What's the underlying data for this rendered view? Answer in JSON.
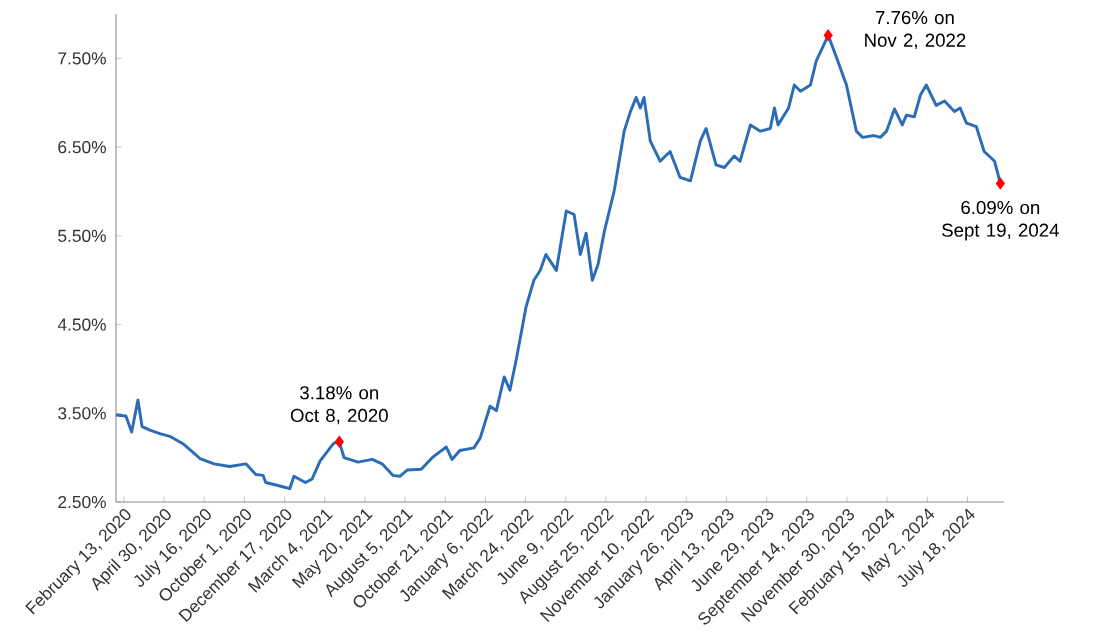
{
  "chart_data": {
    "type": "line",
    "xlim": [
      "2020-01-29",
      "2024-09-26"
    ],
    "ylim": [
      2.5,
      8.0
    ],
    "yticks": [
      {
        "value": 2.5,
        "label": "2.50%"
      },
      {
        "value": 3.5,
        "label": "3.50%"
      },
      {
        "value": 4.5,
        "label": "4.50%"
      },
      {
        "value": 5.5,
        "label": "5.50%"
      },
      {
        "value": 6.5,
        "label": "6.50%"
      },
      {
        "value": 7.5,
        "label": "7.50%"
      }
    ],
    "xticks": [
      {
        "value": "2020-02-13",
        "label": "February 13, 2020"
      },
      {
        "value": "2020-04-30",
        "label": "April 30, 2020"
      },
      {
        "value": "2020-07-16",
        "label": "July 16, 2020"
      },
      {
        "value": "2020-10-01",
        "label": "October 1, 2020"
      },
      {
        "value": "2020-12-17",
        "label": "December 17, 2020"
      },
      {
        "value": "2021-03-04",
        "label": "March 4, 2021"
      },
      {
        "value": "2021-05-20",
        "label": "May 20, 2021"
      },
      {
        "value": "2021-08-05",
        "label": "August 5, 2021"
      },
      {
        "value": "2021-10-21",
        "label": "October 21, 2021"
      },
      {
        "value": "2022-01-06",
        "label": "January 6, 2022"
      },
      {
        "value": "2022-03-24",
        "label": "March 24, 2022"
      },
      {
        "value": "2022-06-09",
        "label": "June 9, 2022"
      },
      {
        "value": "2022-08-25",
        "label": "August 25, 2022"
      },
      {
        "value": "2022-11-10",
        "label": "November 10, 2022"
      },
      {
        "value": "2023-01-26",
        "label": "January 26, 2023"
      },
      {
        "value": "2023-04-13",
        "label": "April 13, 2023"
      },
      {
        "value": "2023-06-29",
        "label": "June 29, 2023"
      },
      {
        "value": "2023-09-14",
        "label": "September 14, 2023"
      },
      {
        "value": "2023-11-30",
        "label": "November 30, 2023"
      },
      {
        "value": "2024-02-15",
        "label": "February 15, 2024"
      },
      {
        "value": "2024-05-02",
        "label": "May 2, 2024"
      },
      {
        "value": "2024-07-18",
        "label": "July 18, 2024"
      }
    ],
    "series": [
      {
        "color": "#2b6cb8",
        "marker": "none",
        "x": [
          "2020-01-29",
          "2020-02-17",
          "2020-02-28",
          "2020-03-11",
          "2020-03-19",
          "2020-04-03",
          "2020-04-22",
          "2020-05-11",
          "2020-06-07",
          "2020-07-08",
          "2020-08-04",
          "2020-09-03",
          "2020-10-04",
          "2020-10-23",
          "2020-11-06",
          "2020-11-11",
          "2020-12-08",
          "2020-12-27",
          "2021-01-04",
          "2021-01-26",
          "2021-02-08",
          "2021-02-23",
          "2021-03-21",
          "2021-04-01",
          "2021-04-10",
          "2021-05-07",
          "2021-06-03",
          "2021-06-22",
          "2021-07-13",
          "2021-07-26",
          "2021-08-09",
          "2021-09-05",
          "2021-09-26",
          "2021-10-23",
          "2021-11-03",
          "2021-11-18",
          "2021-12-15",
          "2021-12-27",
          "2022-01-15",
          "2022-01-27",
          "2022-02-11",
          "2022-02-22",
          "2022-03-06",
          "2022-03-25",
          "2022-04-09",
          "2022-04-21",
          "2022-05-02",
          "2022-05-22",
          "2022-06-10",
          "2022-06-25",
          "2022-07-07",
          "2022-07-18",
          "2022-07-30",
          "2022-08-10",
          "2022-08-22",
          "2022-09-10",
          "2022-09-29",
          "2022-10-11",
          "2022-10-22",
          "2022-10-30",
          "2022-11-06",
          "2022-11-18",
          "2022-12-07",
          "2022-12-26",
          "2023-01-14",
          "2023-02-03",
          "2023-02-22",
          "2023-03-05",
          "2023-03-24",
          "2023-04-09",
          "2023-04-28",
          "2023-05-09",
          "2023-05-29",
          "2023-06-17",
          "2023-07-06",
          "2023-07-14",
          "2023-07-21",
          "2023-08-10",
          "2023-08-21",
          "2023-09-02",
          "2023-09-21",
          "2023-10-02",
          "2023-10-25",
          "2023-11-10",
          "2023-11-29",
          "2023-12-18",
          "2023-12-30",
          "2024-01-21",
          "2024-02-02",
          "2024-02-14",
          "2024-02-29",
          "2024-03-15",
          "2024-03-23",
          "2024-04-07",
          "2024-04-19",
          "2024-04-30",
          "2024-05-19",
          "2024-06-04",
          "2024-06-23",
          "2024-07-04",
          "2024-07-16",
          "2024-08-04",
          "2024-08-19",
          "2024-09-08",
          "2024-09-19"
        ],
        "values": [
          3.48,
          3.47,
          3.29,
          3.65,
          3.35,
          3.31,
          3.27,
          3.24,
          3.15,
          2.99,
          2.93,
          2.9,
          2.93,
          2.81,
          2.8,
          2.72,
          2.68,
          2.65,
          2.79,
          2.72,
          2.76,
          2.96,
          3.16,
          3.18,
          3.0,
          2.95,
          2.98,
          2.93,
          2.8,
          2.79,
          2.86,
          2.87,
          3.0,
          3.12,
          2.98,
          3.08,
          3.11,
          3.22,
          3.58,
          3.53,
          3.91,
          3.76,
          4.1,
          4.7,
          5.0,
          5.11,
          5.29,
          5.11,
          5.78,
          5.74,
          5.29,
          5.53,
          5.0,
          5.18,
          5.55,
          6.01,
          6.68,
          6.9,
          7.06,
          6.94,
          7.06,
          6.57,
          6.34,
          6.45,
          6.16,
          6.12,
          6.57,
          6.71,
          6.3,
          6.27,
          6.4,
          6.34,
          6.75,
          6.68,
          6.71,
          6.94,
          6.75,
          6.94,
          7.2,
          7.13,
          7.2,
          7.47,
          7.76,
          7.51,
          7.2,
          6.68,
          6.61,
          6.63,
          6.61,
          6.68,
          6.93,
          6.75,
          6.86,
          6.84,
          7.09,
          7.2,
          6.97,
          7.02,
          6.9,
          6.94,
          6.77,
          6.73,
          6.45,
          6.34,
          6.09
        ]
      },
      {
        "type": "scatter",
        "color": "#ff0000",
        "marker": "diamond",
        "x": [
          "2021-04-01",
          "2023-10-25",
          "2024-09-19"
        ],
        "values": [
          3.18,
          7.76,
          6.09
        ]
      }
    ],
    "annotations": [
      {
        "text": "3.18% on Oct 8, 2020",
        "x": "2021-04-01",
        "y": 3.18
      },
      {
        "text": "7.76% on Nov 2, 2022",
        "x": "2023-10-25",
        "y": 7.76
      },
      {
        "text": "6.09% on Sept 19, 2024",
        "x": "2024-09-19",
        "y": 6.09
      }
    ]
  }
}
